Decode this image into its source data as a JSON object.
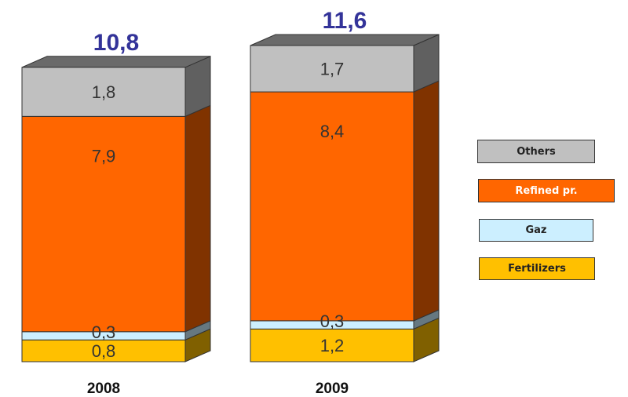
{
  "chart_data": {
    "type": "bar",
    "stacked": true,
    "categories": [
      "2008",
      "2009"
    ],
    "totals": [
      "10,8",
      "11,6"
    ],
    "series": [
      {
        "name": "Fertilizers",
        "color": "#ffc000",
        "values": [
          0.8,
          1.2
        ],
        "labels": [
          "0,8",
          "1,2"
        ]
      },
      {
        "name": "Gaz",
        "color": "#ccefff",
        "values": [
          0.3,
          0.3
        ],
        "labels": [
          "0,3",
          "0,3"
        ]
      },
      {
        "name": "Refined pr.",
        "color": "#ff6600",
        "values": [
          7.9,
          8.4
        ],
        "labels": [
          "7,9",
          "8,4"
        ]
      },
      {
        "name": "Others",
        "color": "#c0c0c0",
        "values": [
          1.8,
          1.7
        ],
        "labels": [
          "1,8",
          "1,7"
        ]
      }
    ],
    "legend_order": [
      "Others",
      "Refined pr.",
      "Gaz",
      "Fertilizers"
    ],
    "legend_position": "right",
    "total_label_color": "#333399",
    "grid": false
  }
}
